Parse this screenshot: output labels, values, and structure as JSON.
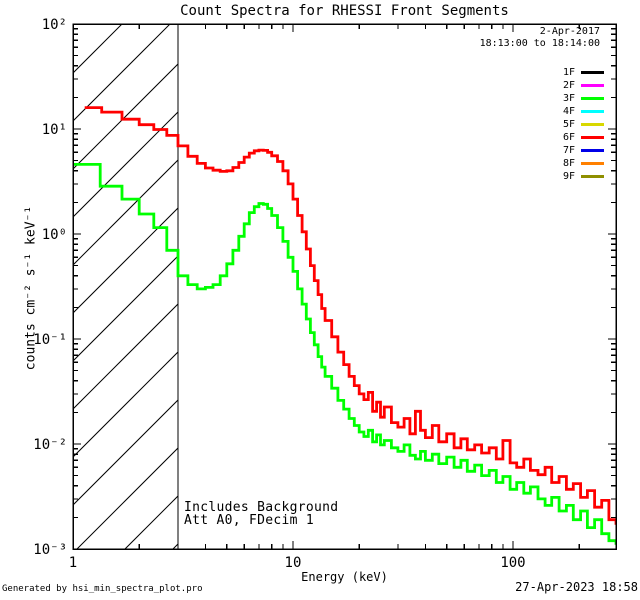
{
  "title": "Count Spectra for RHESSI Front Segments",
  "header": {
    "date": "2-Apr-2017",
    "time_range": "18:13:00 to 18:14:00"
  },
  "notes": {
    "background": "Includes Background",
    "attenuator": "Att A0, FDecim 1"
  },
  "footer": {
    "left": "Generated by hsi_min_spectra_plot.pro",
    "right": "27-Apr-2023 18:58"
  },
  "legend": {
    "position": "top-right",
    "entries": [
      {
        "label": "1F",
        "color": "#000000"
      },
      {
        "label": "2F",
        "color": "#FF00FF"
      },
      {
        "label": "3F",
        "color": "#00FF00"
      },
      {
        "label": "4F",
        "color": "#00FFFF"
      },
      {
        "label": "5F",
        "color": "#D8D800"
      },
      {
        "label": "6F",
        "color": "#FF0000"
      },
      {
        "label": "7F",
        "color": "#0000E8"
      },
      {
        "label": "8F",
        "color": "#FF8000"
      },
      {
        "label": "9F",
        "color": "#8F8F00"
      }
    ]
  },
  "chart_data": {
    "type": "line",
    "style": "histogram-step",
    "title": "Count Spectra for RHESSI Front Segments",
    "xlabel": "Energy (keV)",
    "ylabel": "counts cm⁻² s⁻¹ keV⁻¹",
    "xscale": "log",
    "yscale": "log",
    "xlim": [
      1,
      294
    ],
    "ylim": [
      0.001,
      100
    ],
    "grid": false,
    "x_tick_values": [
      1,
      10,
      100
    ],
    "x_tick_labels": [
      "1",
      "10",
      "100"
    ],
    "y_tick_values": [
      100,
      10,
      1,
      0.1,
      0.01,
      0.001
    ],
    "y_tick_labels": [
      "10²",
      "10¹",
      "10⁰",
      "10⁻¹",
      "10⁻²",
      "10⁻³"
    ],
    "hatched_region": {
      "x_from": 1,
      "x_to": 3,
      "boundary_line_kev": 3
    },
    "series": [
      {
        "name": "3F",
        "color": "#00FF00",
        "x": [
          1.0,
          1.33,
          1.67,
          2.0,
          2.33,
          2.67,
          3.0,
          3.33,
          3.67,
          4.0,
          4.33,
          4.67,
          5.0,
          5.33,
          5.67,
          6.0,
          6.33,
          6.67,
          7.0,
          7.33,
          7.67,
          8.0,
          8.5,
          9.0,
          9.5,
          10,
          10.5,
          11,
          11.5,
          12,
          12.5,
          13,
          13.5,
          14,
          15,
          16,
          17,
          18,
          19,
          20,
          21,
          22,
          23,
          24,
          25,
          26,
          28,
          30,
          32,
          34,
          36,
          38,
          40,
          43,
          46,
          50,
          54,
          58,
          62,
          67,
          72,
          78,
          84,
          90,
          97,
          104,
          112,
          120,
          130,
          140,
          150,
          162,
          175,
          188,
          203,
          218,
          235,
          253,
          273,
          294
        ],
        "y": [
          4.6,
          2.85,
          2.15,
          1.55,
          1.15,
          0.7,
          0.4,
          0.33,
          0.3,
          0.31,
          0.33,
          0.4,
          0.52,
          0.7,
          0.95,
          1.25,
          1.6,
          1.82,
          1.95,
          1.92,
          1.75,
          1.5,
          1.15,
          0.85,
          0.6,
          0.44,
          0.3,
          0.215,
          0.155,
          0.115,
          0.088,
          0.068,
          0.054,
          0.044,
          0.034,
          0.026,
          0.0215,
          0.0175,
          0.015,
          0.013,
          0.0118,
          0.0135,
          0.0105,
          0.0122,
          0.0098,
          0.0108,
          0.0092,
          0.0085,
          0.0098,
          0.0078,
          0.0072,
          0.0085,
          0.007,
          0.008,
          0.0065,
          0.0075,
          0.006,
          0.007,
          0.0055,
          0.0063,
          0.005,
          0.0056,
          0.0043,
          0.0049,
          0.0037,
          0.0043,
          0.0034,
          0.0039,
          0.003,
          0.0026,
          0.0031,
          0.0023,
          0.0026,
          0.0019,
          0.0023,
          0.0016,
          0.0019,
          0.0014,
          0.0012,
          0.0011
        ]
      },
      {
        "name": "6F",
        "color": "#FF0000",
        "x": [
          1.13,
          1.35,
          1.67,
          2.0,
          2.33,
          2.67,
          3.0,
          3.33,
          3.67,
          4.0,
          4.33,
          4.67,
          5.0,
          5.33,
          5.67,
          6.0,
          6.33,
          6.67,
          7.0,
          7.33,
          7.67,
          8.0,
          8.5,
          9.0,
          9.5,
          10,
          10.5,
          11,
          11.5,
          12,
          12.5,
          13,
          13.5,
          14,
          15,
          16,
          17,
          18,
          19,
          20,
          21,
          22,
          23,
          24,
          25,
          26,
          28,
          30,
          32,
          34,
          36,
          38,
          40,
          43,
          46,
          50,
          54,
          58,
          62,
          67,
          72,
          78,
          84,
          90,
          97,
          104,
          112,
          120,
          130,
          140,
          150,
          162,
          175,
          188,
          203,
          218,
          235,
          253,
          273,
          294
        ],
        "y": [
          16.0,
          14.5,
          12.4,
          11.0,
          9.9,
          8.7,
          6.9,
          5.5,
          4.7,
          4.25,
          4.05,
          3.95,
          4.0,
          4.3,
          4.8,
          5.4,
          5.9,
          6.2,
          6.3,
          6.25,
          6.0,
          5.55,
          4.9,
          4.0,
          3.0,
          2.15,
          1.5,
          1.05,
          0.72,
          0.5,
          0.36,
          0.265,
          0.195,
          0.15,
          0.105,
          0.075,
          0.057,
          0.044,
          0.036,
          0.03,
          0.0265,
          0.031,
          0.0205,
          0.025,
          0.018,
          0.0225,
          0.016,
          0.0145,
          0.0175,
          0.0125,
          0.0205,
          0.0135,
          0.0115,
          0.015,
          0.0105,
          0.0125,
          0.0092,
          0.0112,
          0.0088,
          0.0098,
          0.0082,
          0.0092,
          0.0072,
          0.0108,
          0.0066,
          0.006,
          0.0072,
          0.0056,
          0.0051,
          0.006,
          0.0043,
          0.0049,
          0.0037,
          0.0042,
          0.0031,
          0.0036,
          0.0025,
          0.0029,
          0.0019,
          0.0017
        ]
      }
    ]
  }
}
